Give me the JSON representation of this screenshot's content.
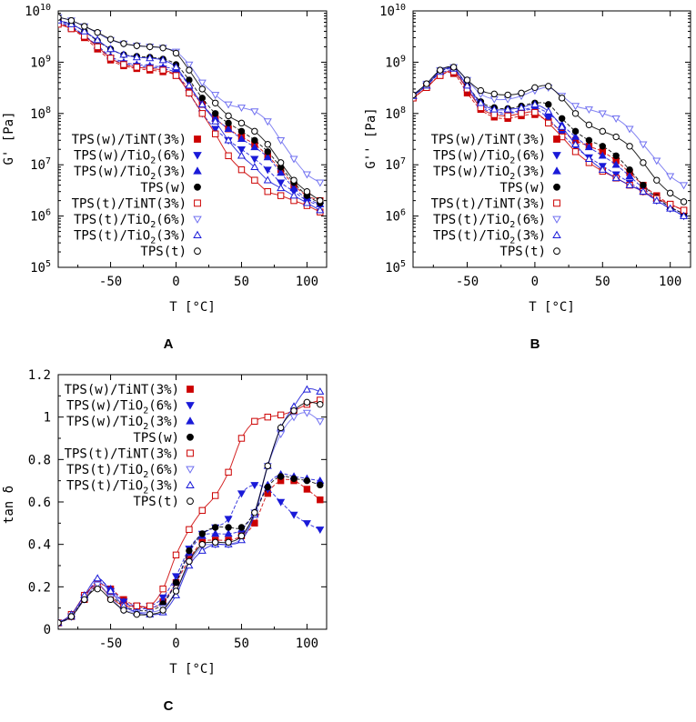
{
  "colors": {
    "red": "#cc0000",
    "blue": "#1a1ad8",
    "black": "#000000",
    "light_blue": "#6f6ff0"
  },
  "legend": [
    {
      "label": "TPS(w)/TiNT(3%)",
      "color": "#cc0000",
      "marker": "square-filled"
    },
    {
      "label": "TPS(w)/TiO2(6%)",
      "color": "#1a1ad8",
      "marker": "triangle-down-filled"
    },
    {
      "label": "TPS(w)/TiO2(3%)",
      "color": "#1a1ad8",
      "marker": "triangle-up-filled"
    },
    {
      "label": "TPS(w)",
      "color": "#000000",
      "marker": "circle-filled"
    },
    {
      "label": "TPS(t)/TiNT(3%)",
      "color": "#cc0000",
      "marker": "square-open"
    },
    {
      "label": "TPS(t)/TiO2(6%)",
      "color": "#6f6ff0",
      "marker": "triangle-down-open"
    },
    {
      "label": "TPS(t)/TiO2(3%)",
      "color": "#1a1ad8",
      "marker": "triangle-up-open"
    },
    {
      "label": "TPS(t)",
      "color": "#000000",
      "marker": "circle-open"
    }
  ],
  "chart_data": [
    {
      "panel": "A",
      "type": "scatter",
      "yscale": "log",
      "xlabel": "T [°C]",
      "ylabel": "G' [Pa]",
      "xlim": [
        -90,
        115
      ],
      "ylim": [
        100000,
        10000000000
      ],
      "xticks": [
        -50,
        0,
        50,
        100
      ],
      "yticks": [
        {
          "value": 100000,
          "base": "10",
          "exp": "5"
        },
        {
          "value": 1000000,
          "base": "10",
          "exp": "6"
        },
        {
          "value": 10000000,
          "base": "10",
          "exp": "7"
        },
        {
          "value": 100000000,
          "base": "10",
          "exp": "8"
        },
        {
          "value": 1000000000,
          "base": "10",
          "exp": "9"
        },
        {
          "value": 10000000000,
          "base": "10",
          "exp": "10"
        }
      ],
      "x": [
        -90,
        -80,
        -70,
        -60,
        -50,
        -40,
        -30,
        -20,
        -10,
        0,
        10,
        20,
        30,
        40,
        50,
        60,
        70,
        80,
        90,
        100,
        110
      ],
      "series": [
        {
          "name": "TPS(w)/TiNT(3%)",
          "values": [
            6000000000.0,
            4500000000.0,
            3000000000.0,
            1800000000.0,
            1100000000.0,
            850000000.0,
            750000000.0,
            700000000.0,
            650000000.0,
            550000000.0,
            300000000.0,
            150000000.0,
            80000000.0,
            50000000.0,
            35000000.0,
            25000000.0,
            15000000.0,
            8000000.0,
            4000000.0,
            2500000.0,
            2000000.0
          ]
        },
        {
          "name": "TPS(w)/TiO2(6%)",
          "values": [
            6500000000.0,
            5000000000.0,
            3300000000.0,
            2000000000.0,
            1200000000.0,
            950000000.0,
            850000000.0,
            800000000.0,
            750000000.0,
            600000000.0,
            250000000.0,
            100000000.0,
            50000000.0,
            30000000.0,
            20000000.0,
            13000000.0,
            8000000.0,
            4500000.0,
            3000000.0,
            2000000.0,
            1600000.0
          ]
        },
        {
          "name": "TPS(w)/TiO2(3%)",
          "values": [
            6000000000.0,
            4800000000.0,
            3300000000.0,
            2100000000.0,
            1300000000.0,
            1000000000.0,
            900000000.0,
            850000000.0,
            800000000.0,
            700000000.0,
            350000000.0,
            150000000.0,
            80000000.0,
            50000000.0,
            32000000.0,
            22000000.0,
            14000000.0,
            7000000.0,
            3500000.0,
            2200000.0,
            1700000.0
          ]
        },
        {
          "name": "TPS(w)",
          "values": [
            6500000000.0,
            5500000000.0,
            4000000000.0,
            2600000000.0,
            1800000000.0,
            1400000000.0,
            1300000000.0,
            1250000000.0,
            1150000000.0,
            900000000.0,
            450000000.0,
            200000000.0,
            100000000.0,
            65000000.0,
            45000000.0,
            30000000.0,
            18000000.0,
            9000000.0,
            4500000.0,
            2500000.0,
            1800000.0
          ]
        },
        {
          "name": "TPS(t)/TiNT(3%)",
          "values": [
            5500000000.0,
            4500000000.0,
            3200000000.0,
            2000000000.0,
            1200000000.0,
            900000000.0,
            800000000.0,
            750000000.0,
            700000000.0,
            550000000.0,
            250000000.0,
            100000000.0,
            40000000.0,
            15000000.0,
            8000000.0,
            5000000.0,
            3000000.0,
            2500000.0,
            2000000.0,
            1600000.0,
            1200000.0
          ]
        },
        {
          "name": "TPS(t)/TiO2(6%)",
          "values": [
            7500000000.0,
            6500000000.0,
            5000000000.0,
            3700000000.0,
            2700000000.0,
            2300000000.0,
            2100000000.0,
            2000000000.0,
            1900000000.0,
            1600000000.0,
            900000000.0,
            400000000.0,
            230000000.0,
            150000000.0,
            130000000.0,
            110000000.0,
            70000000.0,
            30000000.0,
            13000000.0,
            6500000.0,
            4500000.0
          ]
        },
        {
          "name": "TPS(t)/TiO2(3%)",
          "values": [
            6500000000.0,
            5500000000.0,
            4000000000.0,
            2700000000.0,
            1800000000.0,
            1400000000.0,
            1250000000.0,
            1200000000.0,
            1100000000.0,
            800000000.0,
            350000000.0,
            150000000.0,
            70000000.0,
            30000000.0,
            15000000.0,
            9000000.0,
            5000000.0,
            3500000.0,
            2500000.0,
            1800000.0,
            1300000.0
          ]
        },
        {
          "name": "TPS(t)",
          "values": [
            7500000000.0,
            6500000000.0,
            5000000000.0,
            3800000000.0,
            2800000000.0,
            2300000000.0,
            2100000000.0,
            2000000000.0,
            1900000000.0,
            1500000000.0,
            700000000.0,
            300000000.0,
            160000000.0,
            90000000.0,
            65000000.0,
            45000000.0,
            25000000.0,
            11000000.0,
            5000000.0,
            3000000.0,
            2000000.0
          ]
        }
      ]
    },
    {
      "panel": "B",
      "type": "scatter",
      "yscale": "log",
      "xlabel": "T [°C]",
      "ylabel": "G'' [Pa]",
      "xlim": [
        -90,
        115
      ],
      "ylim": [
        100000,
        10000000000
      ],
      "xticks": [
        -50,
        0,
        50,
        100
      ],
      "yticks": [
        {
          "value": 100000,
          "base": "10",
          "exp": "5"
        },
        {
          "value": 1000000,
          "base": "10",
          "exp": "6"
        },
        {
          "value": 10000000,
          "base": "10",
          "exp": "7"
        },
        {
          "value": 100000000,
          "base": "10",
          "exp": "8"
        },
        {
          "value": 1000000000,
          "base": "10",
          "exp": "9"
        },
        {
          "value": 10000000000,
          "base": "10",
          "exp": "10"
        }
      ],
      "x": [
        -90,
        -80,
        -70,
        -60,
        -50,
        -40,
        -30,
        -20,
        -10,
        0,
        10,
        20,
        30,
        40,
        50,
        60,
        70,
        80,
        90,
        100,
        110
      ],
      "series": [
        {
          "name": "TPS(w)/TiNT(3%)",
          "values": [
            200000000.0,
            320000000.0,
            550000000.0,
            600000000.0,
            250000000.0,
            120000000.0,
            85000000.0,
            80000000.0,
            90000000.0,
            95000000.0,
            70000000.0,
            45000000.0,
            30000000.0,
            23000000.0,
            18000000.0,
            12000000.0,
            7000000.0,
            4000000.0,
            2500000.0,
            1700000.0,
            1300000.0
          ]
        },
        {
          "name": "TPS(w)/TiO2(6%)",
          "values": [
            220000000.0,
            350000000.0,
            600000000.0,
            650000000.0,
            300000000.0,
            140000000.0,
            100000000.0,
            100000000.0,
            110000000.0,
            120000000.0,
            80000000.0,
            40000000.0,
            22000000.0,
            14000000.0,
            9500000.0,
            6500000.0,
            4500000.0,
            3000000.0,
            2000000.0,
            1400000.0,
            1000000.0
          ]
        },
        {
          "name": "TPS(w)/TiO2(3%)",
          "values": [
            220000000.0,
            350000000.0,
            650000000.0,
            700000000.0,
            320000000.0,
            150000000.0,
            110000000.0,
            105000000.0,
            115000000.0,
            130000000.0,
            100000000.0,
            60000000.0,
            35000000.0,
            22000000.0,
            15000000.0,
            10000000.0,
            6000000.0,
            3500000.0,
            2200000.0,
            1500000.0,
            1100000.0
          ]
        },
        {
          "name": "TPS(w)",
          "values": [
            220000000.0,
            350000000.0,
            650000000.0,
            750000000.0,
            350000000.0,
            170000000.0,
            130000000.0,
            125000000.0,
            140000000.0,
            160000000.0,
            150000000.0,
            80000000.0,
            45000000.0,
            30000000.0,
            23000000.0,
            15000000.0,
            8000000.0,
            4000000.0,
            2300000.0,
            1500000.0,
            1100000.0
          ]
        },
        {
          "name": "TPS(t)/TiNT(3%)",
          "values": [
            200000000.0,
            320000000.0,
            550000000.0,
            650000000.0,
            300000000.0,
            130000000.0,
            95000000.0,
            90000000.0,
            100000000.0,
            105000000.0,
            65000000.0,
            35000000.0,
            18000000.0,
            11000000.0,
            7500000.0,
            5500000.0,
            4000000.0,
            3000000.0,
            2200000.0,
            1700000.0,
            1300000.0
          ]
        },
        {
          "name": "TPS(t)/TiO2(6%)",
          "values": [
            230000000.0,
            380000000.0,
            700000000.0,
            800000000.0,
            450000000.0,
            240000000.0,
            190000000.0,
            190000000.0,
            220000000.0,
            280000000.0,
            320000000.0,
            220000000.0,
            140000000.0,
            120000000.0,
            100000000.0,
            80000000.0,
            50000000.0,
            25000000.0,
            12000000.0,
            6000000.0,
            4000000.0
          ]
        },
        {
          "name": "TPS(t)/TiO2(3%)",
          "values": [
            220000000.0,
            350000000.0,
            650000000.0,
            750000000.0,
            350000000.0,
            160000000.0,
            120000000.0,
            120000000.0,
            130000000.0,
            150000000.0,
            110000000.0,
            55000000.0,
            25000000.0,
            13000000.0,
            8000000.0,
            5500000.0,
            4000000.0,
            3000000.0,
            2000000.0,
            1400000.0,
            1000000.0
          ]
        },
        {
          "name": "TPS(t)",
          "values": [
            230000000.0,
            380000000.0,
            700000000.0,
            800000000.0,
            450000000.0,
            280000000.0,
            240000000.0,
            230000000.0,
            250000000.0,
            320000000.0,
            340000000.0,
            200000000.0,
            100000000.0,
            60000000.0,
            45000000.0,
            35000000.0,
            23000000.0,
            11000000.0,
            5000000.0,
            2800000.0,
            1900000.0
          ]
        }
      ]
    },
    {
      "panel": "C",
      "type": "scatter",
      "yscale": "linear",
      "xlabel": "T [°C]",
      "ylabel": "tan δ",
      "xlim": [
        -90,
        115
      ],
      "ylim": [
        0,
        1.2
      ],
      "xticks": [
        -50,
        0,
        50,
        100
      ],
      "yticks": [
        {
          "value": 0,
          "label": "0"
        },
        {
          "value": 0.2,
          "label": "0.2"
        },
        {
          "value": 0.4,
          "label": "0.4"
        },
        {
          "value": 0.6,
          "label": "0.6"
        },
        {
          "value": 0.8,
          "label": "0.8"
        },
        {
          "value": 1,
          "label": "1"
        },
        {
          "value": 1.2,
          "label": "1.2"
        }
      ],
      "x": [
        -90,
        -80,
        -70,
        -60,
        -50,
        -40,
        -30,
        -20,
        -10,
        0,
        10,
        20,
        30,
        40,
        50,
        60,
        70,
        80,
        90,
        100,
        110
      ],
      "series": [
        {
          "name": "TPS(w)/TiNT(3%)",
          "values": [
            0.03,
            0.06,
            0.14,
            0.21,
            0.19,
            0.14,
            0.11,
            0.1,
            0.13,
            0.22,
            0.33,
            0.41,
            0.42,
            0.42,
            0.44,
            0.5,
            0.64,
            0.7,
            0.7,
            0.66,
            0.61
          ]
        },
        {
          "name": "TPS(w)/TiO2(6%)",
          "values": [
            0.03,
            0.06,
            0.15,
            0.22,
            0.18,
            0.13,
            0.11,
            0.11,
            0.15,
            0.25,
            0.38,
            0.45,
            0.48,
            0.52,
            0.64,
            0.68,
            0.66,
            0.6,
            0.54,
            0.5,
            0.47
          ]
        },
        {
          "name": "TPS(w)/TiO2(3%)",
          "values": [
            0.03,
            0.06,
            0.15,
            0.23,
            0.19,
            0.13,
            0.1,
            0.1,
            0.13,
            0.22,
            0.36,
            0.44,
            0.45,
            0.45,
            0.47,
            0.55,
            0.68,
            0.73,
            0.72,
            0.71,
            0.7
          ]
        },
        {
          "name": "TPS(w)",
          "values": [
            0.03,
            0.06,
            0.14,
            0.2,
            0.16,
            0.11,
            0.09,
            0.09,
            0.12,
            0.22,
            0.37,
            0.45,
            0.48,
            0.48,
            0.48,
            0.55,
            0.67,
            0.72,
            0.71,
            0.7,
            0.68
          ]
        },
        {
          "name": "TPS(t)/TiNT(3%)",
          "values": [
            0.03,
            0.07,
            0.16,
            0.21,
            0.15,
            0.11,
            0.11,
            0.11,
            0.19,
            0.35,
            0.47,
            0.56,
            0.63,
            0.74,
            0.9,
            0.98,
            1.0,
            1.01,
            1.03,
            1.06,
            1.08
          ]
        },
        {
          "name": "TPS(t)/TiO2(6%)",
          "values": [
            0.03,
            0.06,
            0.14,
            0.21,
            0.15,
            0.09,
            0.08,
            0.08,
            0.1,
            0.18,
            0.31,
            0.39,
            0.4,
            0.4,
            0.43,
            0.55,
            0.77,
            0.92,
            1.0,
            1.02,
            0.98
          ]
        },
        {
          "name": "TPS(t)/TiO2(3%)",
          "values": [
            0.03,
            0.07,
            0.16,
            0.24,
            0.18,
            0.11,
            0.08,
            0.07,
            0.08,
            0.16,
            0.3,
            0.37,
            0.4,
            0.4,
            0.42,
            0.54,
            0.77,
            0.95,
            1.05,
            1.13,
            1.12
          ]
        },
        {
          "name": "TPS(t)",
          "values": [
            0.03,
            0.06,
            0.14,
            0.19,
            0.14,
            0.09,
            0.07,
            0.07,
            0.09,
            0.18,
            0.32,
            0.4,
            0.41,
            0.41,
            0.44,
            0.55,
            0.77,
            0.95,
            1.03,
            1.07,
            1.06
          ]
        }
      ]
    }
  ],
  "panel_labels": {
    "a": "A",
    "b": "B",
    "c": "C"
  },
  "axis_text": {
    "x_label": "T [°C]",
    "ya": "G' [Pa]",
    "yb": "G'' [Pa]",
    "yc": "tan δ"
  }
}
